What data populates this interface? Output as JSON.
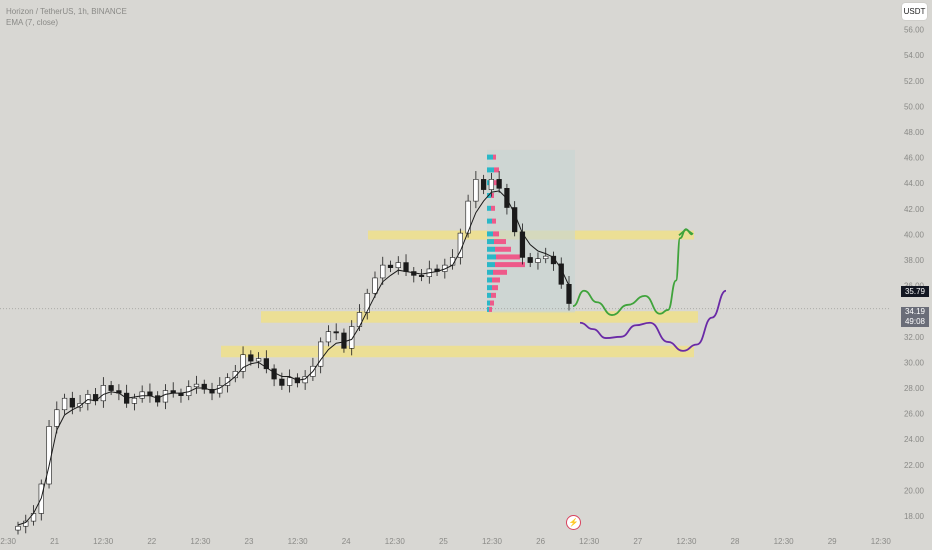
{
  "header": {
    "symbol_line": "Horizon / TetherUS, 1h, BINANCE",
    "indicator_line": "EMA (7, close)"
  },
  "currency_button": "USDT",
  "price_tags": {
    "last_marker": "35.79",
    "current_price": "34.19",
    "countdown": "49:08"
  },
  "colors": {
    "background": "#d8d7d3",
    "candle_body": "#ffffff",
    "candle_outline": "#1b1b1b",
    "ema_line": "#1b1b1b",
    "zone_fill": "#f5e27a",
    "profile_up": "#2bb7c7",
    "profile_down": "#ee5a8a",
    "path_bullish": "#3fa33b",
    "path_bearish": "#6a2aa6",
    "range_box": "#c9d6d3"
  },
  "chart_data": {
    "type": "candlestick",
    "title": "Horizon / TetherUS, 1h, BINANCE",
    "indicator": "EMA (7, close)",
    "y_axis": {
      "ticks": [
        "56.00",
        "54.00",
        "52.00",
        "50.00",
        "48.00",
        "46.00",
        "44.00",
        "42.00",
        "40.00",
        "38.00",
        "36.00",
        "34.00",
        "32.00",
        "30.00",
        "28.00",
        "26.00",
        "24.00",
        "22.00",
        "20.00",
        "18.00"
      ],
      "range": [
        16.6,
        58.4
      ]
    },
    "x_axis": {
      "ticks": [
        "12:30",
        "21",
        "12:30",
        "22",
        "12:30",
        "23",
        "12:30",
        "24",
        "12:30",
        "25",
        "12:30",
        "26",
        "12:30",
        "27",
        "12:30",
        "28",
        "12:30",
        "29",
        "12:30"
      ]
    },
    "close_path": [
      17.2,
      17.6,
      18.2,
      20.5,
      25,
      26.3,
      27.2,
      26.5,
      26.8,
      27.5,
      27,
      28.2,
      27.8,
      27.6,
      26.8,
      27.2,
      27.7,
      27.4,
      26.9,
      27.8,
      27.6,
      27.4,
      28.1,
      28.3,
      27.9,
      27.6,
      28.2,
      28.8,
      29.3,
      30.6,
      30.1,
      30.3,
      29.5,
      28.7,
      28.2,
      28.8,
      28.4,
      28.9,
      29.7,
      31.6,
      32.4,
      32.3,
      31.1,
      32.8,
      33.9,
      35.4,
      36.6,
      37.6,
      37.4,
      37.8,
      37.1,
      36.8,
      36.7,
      37.3,
      37.1,
      37.6,
      38.2,
      40.1,
      42.6,
      44.3,
      43.5,
      44.3,
      43.6,
      42.1,
      40.2,
      38.2,
      37.8,
      38.1,
      38.3,
      37.7,
      36.1,
      34.6
    ],
    "ema_path": [
      17.3,
      17.5,
      18.2,
      19.4,
      21.9,
      24.7,
      25.9,
      26.3,
      26.6,
      27.1,
      27,
      27.5,
      27.7,
      27.6,
      27.2,
      27.3,
      27.4,
      27.4,
      27.2,
      27.5,
      27.6,
      27.6,
      27.7,
      28,
      28,
      27.8,
      28,
      28.4,
      28.9,
      29.6,
      29.9,
      30,
      29.6,
      29.2,
      28.9,
      28.9,
      28.6,
      28.7,
      29.3,
      30.2,
      31,
      31.5,
      31.6,
      31.8,
      32.8,
      34,
      35.2,
      36.3,
      36.8,
      37.2,
      37.1,
      37,
      36.9,
      37,
      37.1,
      37.3,
      37.6,
      38.7,
      40.2,
      41.7,
      42.6,
      43.3,
      43.4,
      42.8,
      41.6,
      40.1,
      39.2,
      38.7,
      38.5,
      38.2,
      37.3,
      36
    ],
    "zones": [
      {
        "from": 40.3,
        "to": 39.6
      },
      {
        "from": 34.0,
        "to": 33.1
      },
      {
        "from": 31.3,
        "to": 30.4
      }
    ],
    "projected_paths": [
      {
        "direction": "up",
        "points": [
          34.4,
          35.6,
          34.7,
          33.7,
          34.5,
          35.2,
          33.8,
          34.1,
          36.4,
          39.7,
          40.4,
          40.0
        ]
      },
      {
        "direction": "down",
        "points": [
          33.1,
          32.6,
          31.9,
          32.0,
          32.9,
          33.1,
          31.6,
          30.9,
          31.4,
          33.5,
          35.6
        ]
      }
    ]
  }
}
